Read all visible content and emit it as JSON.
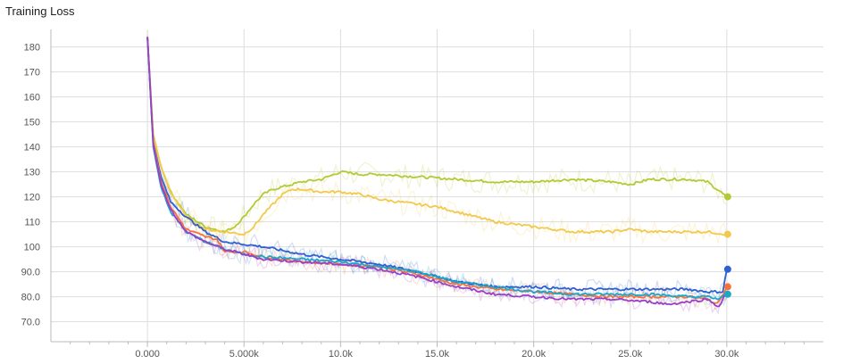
{
  "title": "Training Loss",
  "colors": {
    "grid": "#dddddd",
    "axis": "#bbbbbb",
    "lime": "#b5c934",
    "yellow": "#f2c94c",
    "blue": "#2f5fd0",
    "orange": "#f4733c",
    "teal": "#1aa7c9",
    "purple": "#9a3fc7"
  },
  "chart_data": {
    "type": "line",
    "title": "Training Loss",
    "xlabel": "",
    "ylabel": "",
    "xlim": [
      -5000,
      35000
    ],
    "ylim": [
      62,
      187
    ],
    "grid": true,
    "xticks": [
      0,
      5000,
      10000,
      15000,
      20000,
      25000,
      30000
    ],
    "xtick_labels": [
      "0.000",
      "5.000k",
      "10.0k",
      "15.0k",
      "20.0k",
      "25.0k",
      "30.0k"
    ],
    "yticks": [
      70,
      80,
      90,
      100,
      110,
      120,
      130,
      140,
      150,
      160,
      170,
      180
    ],
    "ytick_labels": [
      "70.0",
      "80.0",
      "90.0",
      "100",
      "110",
      "120",
      "130",
      "140",
      "150",
      "160",
      "170",
      "180"
    ],
    "series": [
      {
        "color": "lime",
        "x": [
          0,
          300,
          700,
          1200,
          2000,
          3000,
          4000,
          4500,
          5000,
          5500,
          6000,
          6500,
          7000,
          8000,
          9000,
          10000,
          11000,
          12000,
          14000,
          16000,
          18000,
          20000,
          22000,
          24000,
          25000,
          26000,
          27000,
          28000,
          29000,
          30000
        ],
        "y": [
          184,
          145,
          132,
          122,
          113,
          108,
          106,
          108,
          112,
          117,
          121,
          123,
          124,
          126,
          127,
          130,
          129,
          129,
          128,
          127,
          126,
          126,
          127,
          126,
          125,
          127,
          127,
          127,
          126,
          120
        ]
      },
      {
        "color": "yellow",
        "x": [
          0,
          300,
          700,
          1200,
          2000,
          3000,
          4000,
          5000,
          5500,
          6000,
          6500,
          7000,
          7500,
          8000,
          9000,
          10000,
          11000,
          12000,
          13000,
          14000,
          15000,
          16000,
          17000,
          18000,
          19000,
          20000,
          21000,
          22000,
          23000,
          24000,
          25000,
          26000,
          27000,
          28000,
          29000,
          30000
        ],
        "y": [
          184,
          145,
          132,
          122,
          112,
          107,
          106,
          105,
          108,
          113,
          117,
          121,
          123,
          123,
          122,
          122,
          121,
          119,
          118,
          117,
          116,
          114,
          112,
          110,
          109,
          108,
          107,
          106,
          106,
          106,
          107,
          106,
          106,
          106,
          106,
          105
        ]
      },
      {
        "color": "blue",
        "x": [
          0,
          300,
          700,
          1200,
          2000,
          3000,
          4000,
          5000,
          6000,
          8000,
          10000,
          12000,
          14000,
          16000,
          18000,
          20000,
          22000,
          24000,
          26000,
          28000,
          29000,
          29800,
          30000
        ],
        "y": [
          184,
          142,
          128,
          118,
          112,
          106,
          102,
          101,
          100,
          97,
          95,
          93,
          90,
          86,
          84,
          84,
          83,
          83,
          83,
          83,
          82,
          82,
          91
        ]
      },
      {
        "color": "orange",
        "x": [
          0,
          300,
          700,
          1200,
          2000,
          3000,
          3600,
          4000,
          5000,
          6000,
          8000,
          10000,
          12000,
          14000,
          16000,
          18000,
          20000,
          22000,
          24000,
          26000,
          28000,
          29000,
          29500,
          30000
        ],
        "y": [
          184,
          142,
          126,
          116,
          107,
          104,
          103,
          98,
          98,
          96,
          94,
          93,
          92,
          89,
          85,
          83,
          82,
          81,
          80,
          80,
          80,
          79,
          77,
          84
        ]
      },
      {
        "color": "teal",
        "x": [
          0,
          300,
          700,
          1200,
          2000,
          3000,
          4000,
          5000,
          6000,
          8000,
          10000,
          12000,
          14000,
          16000,
          18000,
          20000,
          22000,
          24000,
          26000,
          28000,
          29000,
          29600,
          30000
        ],
        "y": [
          184,
          140,
          124,
          114,
          106,
          102,
          99,
          97,
          96,
          95,
          94,
          92,
          90,
          86,
          84,
          82,
          81,
          81,
          81,
          80,
          80,
          79,
          81
        ]
      },
      {
        "color": "purple",
        "x": [
          0,
          300,
          700,
          1200,
          2000,
          3000,
          4000,
          5000,
          6000,
          8000,
          10000,
          12000,
          14000,
          16000,
          18000,
          20000,
          22000,
          24000,
          26000,
          27000,
          28000,
          29000,
          29600,
          30000
        ],
        "y": [
          184,
          141,
          125,
          115,
          106,
          102,
          99,
          97,
          95,
          94,
          93,
          91,
          88,
          84,
          81,
          80,
          79,
          79,
          78,
          77,
          78,
          79,
          76,
          82
        ]
      }
    ],
    "end_markers": [
      {
        "color": "lime",
        "x": 30000,
        "y": 120
      },
      {
        "color": "yellow",
        "x": 30000,
        "y": 105
      },
      {
        "color": "blue",
        "x": 30000,
        "y": 91
      },
      {
        "color": "orange",
        "x": 30000,
        "y": 84
      },
      {
        "color": "teal",
        "x": 30000,
        "y": 81
      }
    ]
  }
}
